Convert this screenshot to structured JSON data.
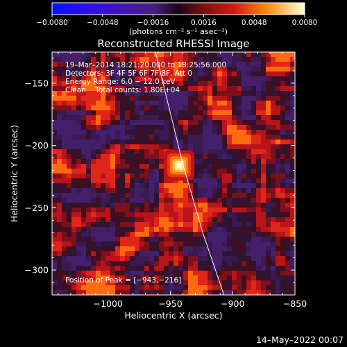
{
  "chart_data": {
    "type": "heatmap",
    "title": "Reconstructed RHESSI Image",
    "xlabel": "Heliocentric X (arcsec)",
    "ylabel": "Heliocentric Y (arcsec)",
    "xlim": [
      -1045,
      -850
    ],
    "ylim": [
      -320,
      -125
    ],
    "x_ticks": [
      -1000,
      -950,
      -900,
      -850
    ],
    "x_tick_labels": [
      "−1000",
      "−950",
      "−900",
      "−850"
    ],
    "y_ticks": [
      -150,
      -200,
      -250,
      -300
    ],
    "y_tick_labels": [
      "−150",
      "−200",
      "−250",
      "−300"
    ],
    "colorbar": {
      "range": [
        -0.008,
        0.008
      ],
      "tick_labels": [
        "−0.0080",
        "−0.0048",
        "−0.0016",
        "0.0016",
        "0.0048",
        "0.0080"
      ],
      "unit_label": "(photons cm⁻² s⁻¹ asec⁻²)"
    },
    "annotations": {
      "time_range": "19–Mar–2014 18:21:20.000 to 18:25:56.000",
      "detectors": "Detectors: 3F 4F 5F 6F 7F 8F, Att 0",
      "energy": "Energy Range: 6.0 − 12.0 keV",
      "method": "Clean    Total counts: 1.80E+04",
      "peak": "Position of Peak = [−943,−216]"
    },
    "peak": {
      "x": -943,
      "y": -216
    },
    "limb_line": [
      [
        -962,
        -125
      ],
      [
        -940,
        -215
      ],
      [
        -924,
        -270
      ],
      [
        -907,
        -320
      ]
    ]
  },
  "footer": {
    "date": "14–May–2022 00:07"
  },
  "colors": {
    "background": "#000000",
    "text": "#ffffff"
  }
}
